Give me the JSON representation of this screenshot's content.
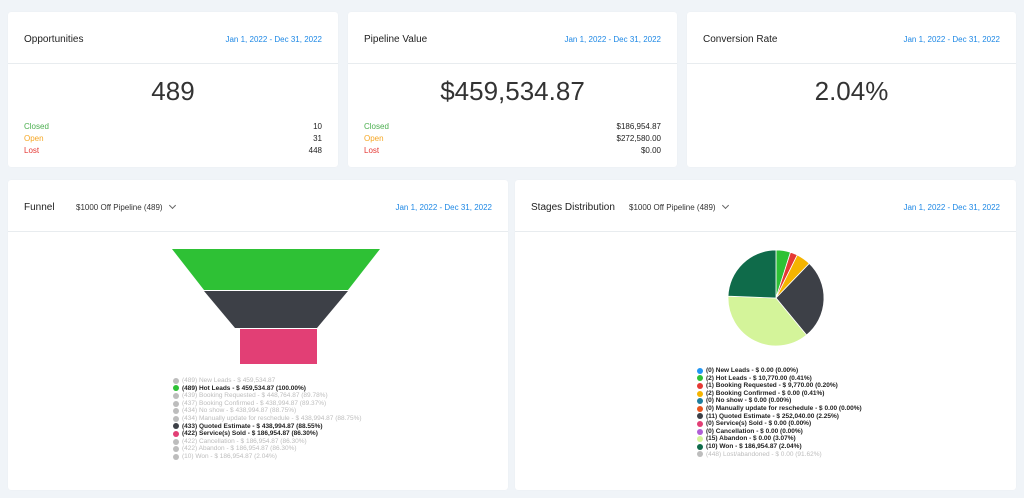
{
  "opportunities": {
    "title": "Opportunities",
    "date_range": "Jan 1, 2022 - Dec 31, 2022",
    "total": "489",
    "rows": [
      {
        "label": "Closed",
        "value": "10"
      },
      {
        "label": "Open",
        "value": "31"
      },
      {
        "label": "Lost",
        "value": "448"
      }
    ]
  },
  "pipeline_value": {
    "title": "Pipeline Value",
    "date_range": "Jan 1, 2022 - Dec 31, 2022",
    "total": "$459,534.87",
    "rows": [
      {
        "label": "Closed",
        "value": "$186,954.87"
      },
      {
        "label": "Open",
        "value": "$272,580.00"
      },
      {
        "label": "Lost",
        "value": "$0.00"
      }
    ]
  },
  "conversion_rate": {
    "title": "Conversion Rate",
    "date_range": "Jan 1, 2022 - Dec 31, 2022",
    "value": "2.04%"
  },
  "funnel": {
    "title": "Funnel",
    "pipeline": "$1000 Off Pipeline (489)",
    "date_range": "Jan 1, 2022 - Dec 31, 2022",
    "stages": [
      {
        "color": "#2ec135",
        "count": 489
      },
      {
        "color": "#3d4047",
        "count": 433
      },
      {
        "color": "#e23f75",
        "count": 422
      }
    ],
    "legend": [
      {
        "text": "(489) New Leads - $ 459,534.87",
        "color": "#bdbdbd",
        "active": false
      },
      {
        "text": "(489) Hot Leads - $ 459,534.87 (100.00%)",
        "color": "#2ec135",
        "active": true
      },
      {
        "text": "(439) Booking Requested - $ 448,764.87 (89.78%)",
        "color": "#bdbdbd",
        "active": false
      },
      {
        "text": "(437) Booking Confirmed - $ 438,994.87 (89.37%)",
        "color": "#bdbdbd",
        "active": false
      },
      {
        "text": "(434) No show - $ 438,994.87 (88.75%)",
        "color": "#bdbdbd",
        "active": false
      },
      {
        "text": "(434) Manually update for reschedule - $ 438,994.87 (88.75%)",
        "color": "#bdbdbd",
        "active": false
      },
      {
        "text": "(433) Quoted Estimate - $ 438,994.87 (88.55%)",
        "color": "#3d4047",
        "active": true
      },
      {
        "text": "(422) Service(s) Sold - $ 186,954.87 (86.30%)",
        "color": "#e23f75",
        "active": true
      },
      {
        "text": "(422) Cancellation - $ 186,954.87 (86.30%)",
        "color": "#bdbdbd",
        "active": false
      },
      {
        "text": "(422) Abandon - $ 186,954.87 (86.30%)",
        "color": "#bdbdbd",
        "active": false
      },
      {
        "text": "(10) Won - $ 186,954.87 (2.04%)",
        "color": "#bdbdbd",
        "active": false
      }
    ]
  },
  "stages_distribution": {
    "title": "Stages Distribution",
    "pipeline": "$1000 Off Pipeline (489)",
    "date_range": "Jan 1, 2022 - Dec 31, 2022",
    "legend": [
      {
        "text": "(0) New Leads - $ 0.00 (0.00%)",
        "color": "#2196f3",
        "active": true
      },
      {
        "text": "(2) Hot Leads - $ 10,770.00 (0.41%)",
        "color": "#2ec135",
        "active": true
      },
      {
        "text": "(1) Booking Requested - $ 9,770.00 (0.20%)",
        "color": "#e53935",
        "active": true
      },
      {
        "text": "(2) Booking Confirmed - $ 0.00 (0.41%)",
        "color": "#f5b400",
        "active": true
      },
      {
        "text": "(0) No show - $ 0.00 (0.00%)",
        "color": "#1e7f9e",
        "active": true
      },
      {
        "text": "(0) Manually update for reschedule - $ 0.00 (0.00%)",
        "color": "#e8541e",
        "active": true
      },
      {
        "text": "(11) Quoted Estimate - $ 252,040.00 (2.25%)",
        "color": "#3d4047",
        "active": true
      },
      {
        "text": "(0) Service(s) Sold - $ 0.00 (0.00%)",
        "color": "#e23f75",
        "active": true
      },
      {
        "text": "(0) Cancellation - $ 0.00 (0.00%)",
        "color": "#b05fd6",
        "active": true
      },
      {
        "text": "(15) Abandon - $ 0.00 (3.07%)",
        "color": "#d4f49a",
        "active": true
      },
      {
        "text": "(10) Won - $ 186,954.87 (2.04%)",
        "color": "#0f6b4a",
        "active": true
      },
      {
        "text": "(448) Lost/abandoned - $ 0.00 (91.62%)",
        "color": "#bdbdbd",
        "active": false
      }
    ]
  },
  "chart_data": {
    "type": "pie",
    "categories": [
      "Hot Leads",
      "Booking Requested",
      "Booking Confirmed",
      "Quoted Estimate",
      "Abandon",
      "Won"
    ],
    "values": [
      2,
      1,
      2,
      11,
      15,
      10
    ],
    "colors": [
      "#2ec135",
      "#e53935",
      "#f5b400",
      "#3d4047",
      "#d4f49a",
      "#0f6b4a"
    ]
  }
}
